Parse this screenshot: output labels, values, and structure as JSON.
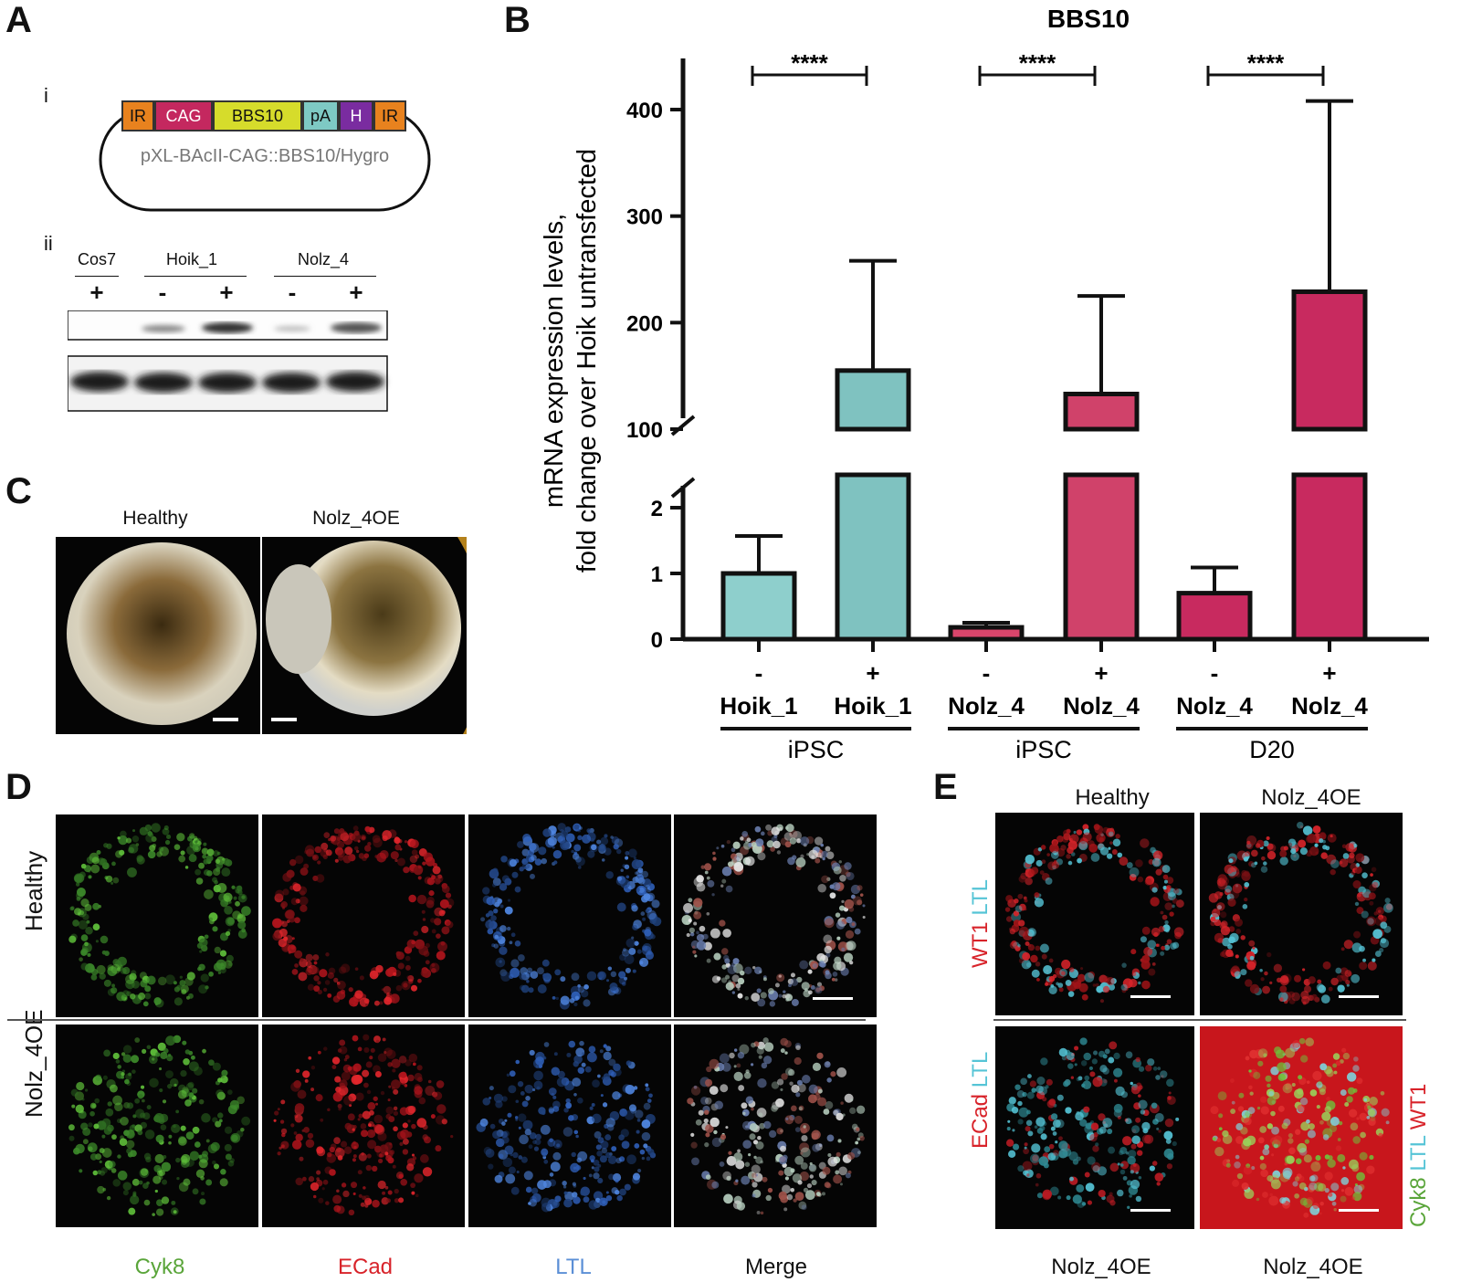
{
  "panels": {
    "a": "A",
    "b": "B",
    "c": "C",
    "d": "D",
    "e": "E"
  },
  "panel_a": {
    "sub_i": "i",
    "sub_ii": "ii",
    "plasmid_segments": [
      {
        "label": "IR",
        "color": "#e8821e"
      },
      {
        "label": "CAG",
        "color": "#c4285f"
      },
      {
        "label": "BBS10",
        "color": "#d6dc2b"
      },
      {
        "label": "pA",
        "color": "#7ec9c4"
      },
      {
        "label": "H",
        "color": "#7a2ca0"
      },
      {
        "label": "IR",
        "color": "#e8821e"
      }
    ],
    "plasmid_name": "pXL-BAcII-CAG::BBS10/Hygro",
    "blot_groups": [
      "Cos7",
      "Hoik_1",
      "Nolz_4"
    ],
    "blot_signs": [
      "+",
      "-",
      "+",
      "-",
      "+"
    ]
  },
  "chart_data": {
    "type": "bar",
    "title": "BBS10",
    "ylabel_line1": "mRNA expression levels,",
    "ylabel_line2": "fold change over Hoik untransfected",
    "y_axis_break": {
      "lower": [
        0,
        2.5
      ],
      "upper": [
        90,
        450
      ]
    },
    "lower_ticks": [
      "0",
      "1",
      "2"
    ],
    "upper_ticks": [
      "100",
      "200",
      "300",
      "400"
    ],
    "categories": [
      "- Hoik_1",
      "+ Hoik_1",
      "- Nolz_4",
      "+ Nolz_4",
      "- Nolz_4",
      "+ Nolz_4"
    ],
    "signs": [
      "-",
      "+",
      "-",
      "+",
      "-",
      "+"
    ],
    "lines": [
      "Hoik_1",
      "Hoik_1",
      "Nolz_4",
      "Nolz_4",
      "Nolz_4",
      "Nolz_4"
    ],
    "groups": [
      "iPSC",
      "iPSC",
      "D20"
    ],
    "values": [
      1.0,
      155,
      0.18,
      133,
      0.7,
      229
    ],
    "errors_upper": [
      1.57,
      258,
      0.25,
      225,
      1.09,
      408
    ],
    "colors": [
      "#8ecfcc",
      "#7fc2c0",
      "#d9456b",
      "#d0426a",
      "#c82a5f",
      "#c82a5f"
    ],
    "significance": [
      "****",
      "****",
      "****"
    ]
  },
  "panel_c": {
    "labels": [
      "Healthy",
      "Nolz_4OE"
    ]
  },
  "panel_d": {
    "rows": [
      "Healthy",
      "Nolz_4OE"
    ],
    "columns": [
      {
        "label": "Cyk8",
        "color": "#5aa53a"
      },
      {
        "label": "ECad",
        "color": "#d8232a"
      },
      {
        "label": "LTL",
        "color": "#5b8fd6"
      },
      {
        "label": "Merge",
        "color": "#111111"
      }
    ]
  },
  "panel_e": {
    "top_labels": [
      "Healthy",
      "Nolz_4OE"
    ],
    "bottom_labels": [
      "Nolz_4OE",
      "Nolz_4OE"
    ],
    "left_top": {
      "a": "WT1",
      "b": "LTL"
    },
    "left_bottom": {
      "a": "ECad",
      "b": "LTL"
    },
    "right_bottom": {
      "a": "Cyk8",
      "b": "LTL",
      "c": "WT1"
    }
  }
}
